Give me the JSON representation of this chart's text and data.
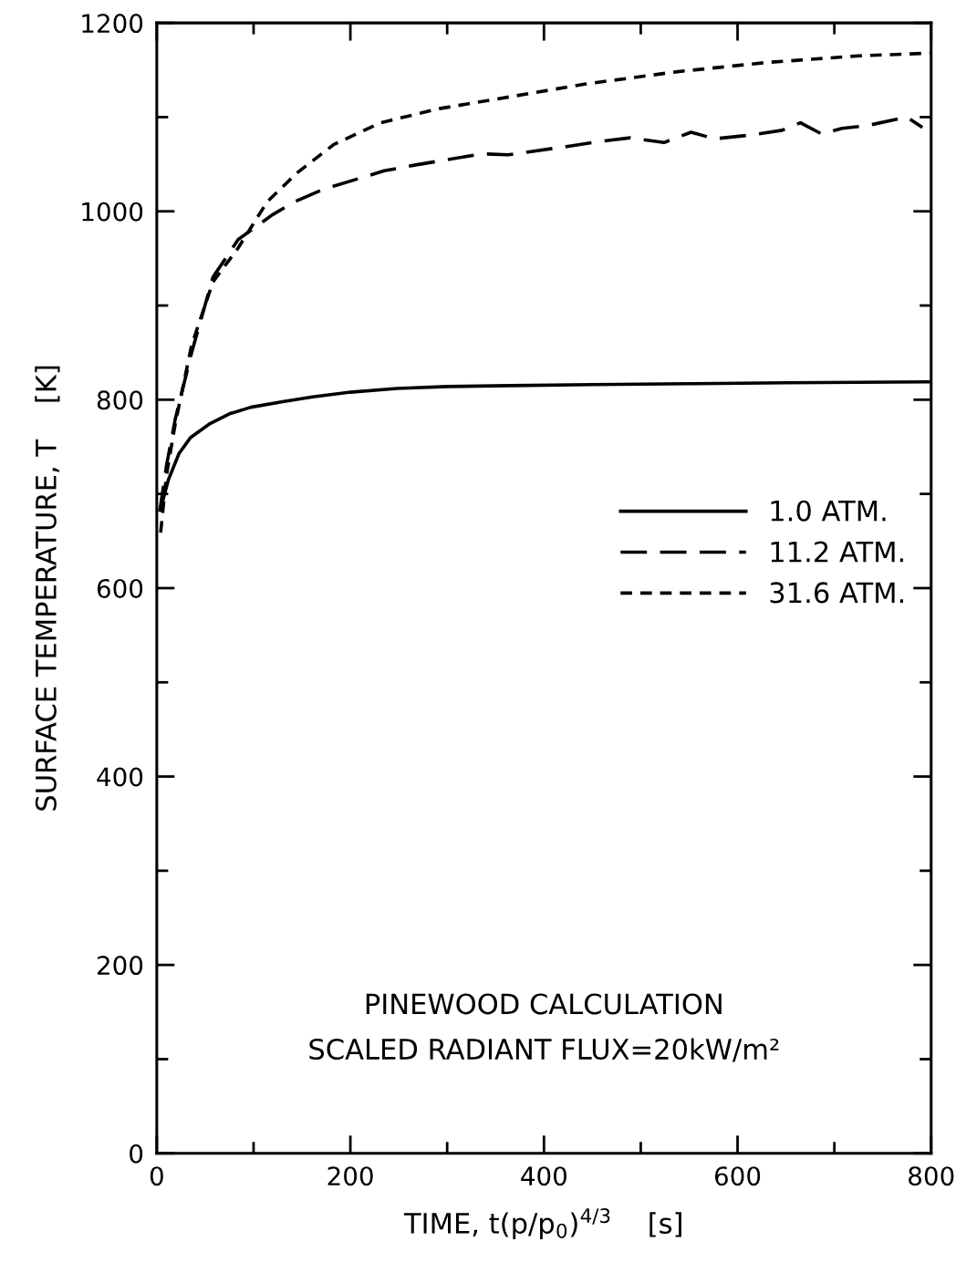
{
  "chart_data": {
    "type": "line",
    "xlabel": "TIME, t(p/p$_{0}$)$^{4/3}$    [s]",
    "ylabel": "SURFACE TEMPERATURE, T    [K]",
    "annotations": [
      "PINEWOOD CALCULATION",
      "SCALED RADIANT FLUX=20kW/m²"
    ],
    "xlim": [
      0,
      800
    ],
    "ylim": [
      0,
      1200
    ],
    "xticks": [
      0,
      {
        "value": 100,
        "label": null
      },
      200,
      {
        "value": 300,
        "label": null
      },
      400,
      {
        "value": 500,
        "label": null
      },
      600,
      {
        "value": 700,
        "label": null
      },
      800
    ],
    "yticks": [
      0,
      {
        "value": 100,
        "label": null
      },
      200,
      {
        "value": 300,
        "label": null
      },
      400,
      {
        "value": 500,
        "label": null
      },
      600,
      {
        "value": 700,
        "label": null
      },
      800,
      {
        "value": 900,
        "label": null
      },
      1000,
      {
        "value": 1100,
        "label": null
      },
      1200
    ],
    "grid": false,
    "legend": "right",
    "series": [
      {
        "name": "1.0 ATM.",
        "color": "#000000",
        "line_style": "solid",
        "x": [
          5,
          12,
          23,
          35,
          54,
          75,
          97,
          130,
          161,
          200,
          248,
          300,
          365,
          450,
          550,
          650,
          800
        ],
        "values": [
          688,
          715,
          743,
          760,
          774,
          785,
          792,
          798,
          803,
          808,
          812,
          814,
          815,
          816,
          817,
          818,
          819
        ]
      },
      {
        "name": "11.2 ATM.",
        "color": "#000000",
        "line_style": "dashed",
        "x": [
          3,
          10,
          19,
          36,
          58,
          84,
          119,
          142,
          171,
          235,
          266,
          336,
          363,
          425,
          457,
          489,
          524,
          552,
          576,
          614,
          646,
          665,
          687,
          708,
          734,
          775,
          791
        ],
        "values": [
          681,
          730,
          779,
          850,
          930,
          970,
          996,
          1010,
          1023,
          1043,
          1049,
          1061,
          1060,
          1069,
          1074,
          1078,
          1073,
          1084,
          1077,
          1081,
          1086,
          1094,
          1082,
          1088,
          1091,
          1100,
          1089
        ]
      },
      {
        "name": "31.6 ATM.",
        "color": "#000000",
        "line_style": "dashed",
        "x": [
          4,
          10,
          19,
          36,
          58,
          84,
          114,
          144,
          183,
          231,
          292,
          350,
          442,
          536,
          630,
          725,
          800
        ],
        "values": [
          659,
          720,
          774,
          858,
          925,
          961,
          1010,
          1040,
          1071,
          1094,
          1109,
          1119,
          1135,
          1148,
          1158,
          1165,
          1168
        ]
      }
    ]
  }
}
